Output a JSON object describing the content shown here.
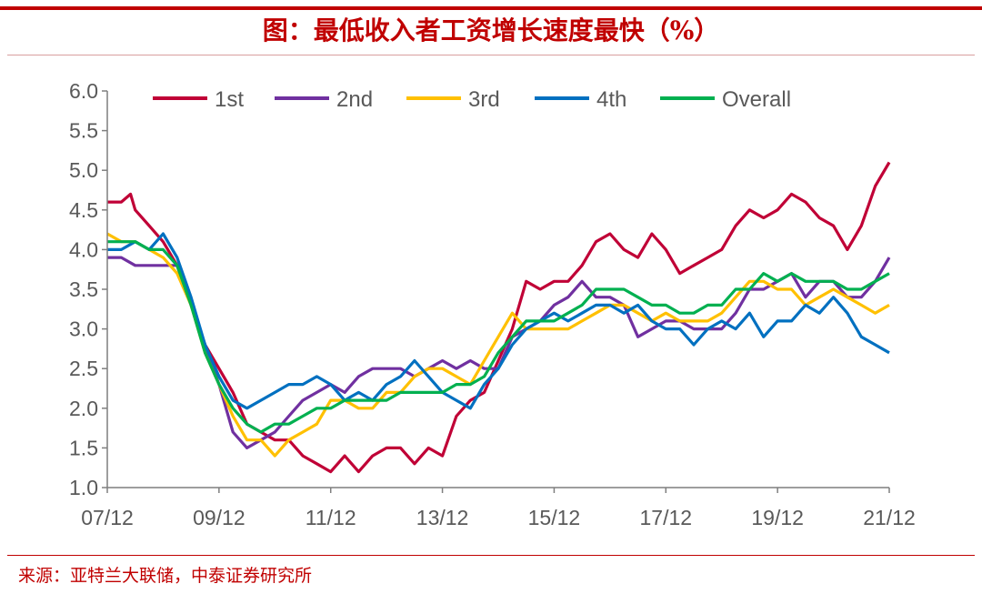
{
  "header": {
    "title": "图：最低收入者工资增长速度最快（%）"
  },
  "footer": {
    "source": "来源：亚特兰大联储，中泰证券研究所"
  },
  "colors": {
    "accent": "#c00000",
    "axis": "#7f7f7f",
    "text": "#595959"
  },
  "chart_data": {
    "type": "line",
    "title": "图：最低收入者工资增长速度最快（%）",
    "xlabel": "",
    "ylabel": "",
    "x_ticks": [
      "07/12",
      "09/12",
      "11/12",
      "13/12",
      "15/12",
      "17/12",
      "19/12",
      "21/12"
    ],
    "y_ticks": [
      "6.0",
      "5.5",
      "5.0",
      "4.5",
      "4.0",
      "3.5",
      "3.0",
      "2.5",
      "2.0",
      "1.5",
      "1.0"
    ],
    "ylim": [
      1.0,
      6.0
    ],
    "grid": false,
    "legend_position": "top",
    "series": [
      {
        "name": "1st",
        "color": "#c00036",
        "points": [
          [
            "2007-12",
            4.6
          ],
          [
            "2008-03",
            4.6
          ],
          [
            "2008-05",
            4.7
          ],
          [
            "2008-06",
            4.5
          ],
          [
            "2008-09",
            4.3
          ],
          [
            "2008-12",
            4.1
          ],
          [
            "2009-03",
            3.8
          ],
          [
            "2009-06",
            3.3
          ],
          [
            "2009-09",
            2.8
          ],
          [
            "2009-12",
            2.5
          ],
          [
            "2010-03",
            2.2
          ],
          [
            "2010-06",
            1.8
          ],
          [
            "2010-09",
            1.7
          ],
          [
            "2010-12",
            1.6
          ],
          [
            "2011-03",
            1.6
          ],
          [
            "2011-06",
            1.4
          ],
          [
            "2011-09",
            1.3
          ],
          [
            "2011-12",
            1.2
          ],
          [
            "2012-03",
            1.4
          ],
          [
            "2012-06",
            1.2
          ],
          [
            "2012-09",
            1.4
          ],
          [
            "2012-12",
            1.5
          ],
          [
            "2013-03",
            1.5
          ],
          [
            "2013-06",
            1.3
          ],
          [
            "2013-09",
            1.5
          ],
          [
            "2013-12",
            1.4
          ],
          [
            "2014-03",
            1.9
          ],
          [
            "2014-06",
            2.1
          ],
          [
            "2014-09",
            2.2
          ],
          [
            "2014-12",
            2.6
          ],
          [
            "2015-03",
            3.0
          ],
          [
            "2015-06",
            3.6
          ],
          [
            "2015-09",
            3.5
          ],
          [
            "2015-12",
            3.6
          ],
          [
            "2016-03",
            3.6
          ],
          [
            "2016-06",
            3.8
          ],
          [
            "2016-09",
            4.1
          ],
          [
            "2016-12",
            4.2
          ],
          [
            "2017-03",
            4.0
          ],
          [
            "2017-06",
            3.9
          ],
          [
            "2017-09",
            4.2
          ],
          [
            "2017-12",
            4.0
          ],
          [
            "2018-03",
            3.7
          ],
          [
            "2018-06",
            3.8
          ],
          [
            "2018-09",
            3.9
          ],
          [
            "2018-12",
            4.0
          ],
          [
            "2019-03",
            4.3
          ],
          [
            "2019-06",
            4.5
          ],
          [
            "2019-09",
            4.4
          ],
          [
            "2019-12",
            4.5
          ],
          [
            "2020-03",
            4.7
          ],
          [
            "2020-06",
            4.6
          ],
          [
            "2020-09",
            4.4
          ],
          [
            "2020-12",
            4.3
          ],
          [
            "2021-03",
            4.0
          ],
          [
            "2021-06",
            4.3
          ],
          [
            "2021-09",
            4.8
          ],
          [
            "2021-12",
            5.1
          ]
        ]
      },
      {
        "name": "2nd",
        "color": "#7030a0",
        "points": [
          [
            "2007-12",
            3.9
          ],
          [
            "2008-03",
            3.9
          ],
          [
            "2008-06",
            3.8
          ],
          [
            "2008-09",
            3.8
          ],
          [
            "2008-12",
            3.8
          ],
          [
            "2009-03",
            3.8
          ],
          [
            "2009-06",
            3.3
          ],
          [
            "2009-09",
            2.8
          ],
          [
            "2009-12",
            2.3
          ],
          [
            "2010-03",
            1.7
          ],
          [
            "2010-06",
            1.5
          ],
          [
            "2010-09",
            1.6
          ],
          [
            "2010-12",
            1.7
          ],
          [
            "2011-03",
            1.9
          ],
          [
            "2011-06",
            2.1
          ],
          [
            "2011-09",
            2.2
          ],
          [
            "2011-12",
            2.3
          ],
          [
            "2012-03",
            2.2
          ],
          [
            "2012-06",
            2.4
          ],
          [
            "2012-09",
            2.5
          ],
          [
            "2012-12",
            2.5
          ],
          [
            "2013-03",
            2.5
          ],
          [
            "2013-06",
            2.4
          ],
          [
            "2013-09",
            2.5
          ],
          [
            "2013-12",
            2.6
          ],
          [
            "2014-03",
            2.5
          ],
          [
            "2014-06",
            2.6
          ],
          [
            "2014-09",
            2.5
          ],
          [
            "2014-12",
            2.5
          ],
          [
            "2015-03",
            2.9
          ],
          [
            "2015-06",
            3.0
          ],
          [
            "2015-09",
            3.1
          ],
          [
            "2015-12",
            3.3
          ],
          [
            "2016-03",
            3.4
          ],
          [
            "2016-06",
            3.6
          ],
          [
            "2016-09",
            3.4
          ],
          [
            "2016-12",
            3.4
          ],
          [
            "2017-03",
            3.3
          ],
          [
            "2017-06",
            2.9
          ],
          [
            "2017-09",
            3.0
          ],
          [
            "2017-12",
            3.1
          ],
          [
            "2018-03",
            3.1
          ],
          [
            "2018-06",
            3.0
          ],
          [
            "2018-09",
            3.0
          ],
          [
            "2018-12",
            3.0
          ],
          [
            "2019-03",
            3.2
          ],
          [
            "2019-06",
            3.5
          ],
          [
            "2019-09",
            3.5
          ],
          [
            "2019-12",
            3.6
          ],
          [
            "2020-03",
            3.7
          ],
          [
            "2020-06",
            3.4
          ],
          [
            "2020-09",
            3.6
          ],
          [
            "2020-12",
            3.6
          ],
          [
            "2021-03",
            3.4
          ],
          [
            "2021-06",
            3.4
          ],
          [
            "2021-09",
            3.6
          ],
          [
            "2021-12",
            3.9
          ]
        ]
      },
      {
        "name": "3rd",
        "color": "#ffc000",
        "points": [
          [
            "2007-12",
            4.2
          ],
          [
            "2008-03",
            4.1
          ],
          [
            "2008-06",
            4.1
          ],
          [
            "2008-09",
            4.0
          ],
          [
            "2008-12",
            3.9
          ],
          [
            "2009-03",
            3.7
          ],
          [
            "2009-06",
            3.3
          ],
          [
            "2009-09",
            2.7
          ],
          [
            "2009-12",
            2.3
          ],
          [
            "2010-03",
            1.9
          ],
          [
            "2010-06",
            1.6
          ],
          [
            "2010-09",
            1.6
          ],
          [
            "2010-12",
            1.4
          ],
          [
            "2011-03",
            1.6
          ],
          [
            "2011-06",
            1.7
          ],
          [
            "2011-09",
            1.8
          ],
          [
            "2011-12",
            2.1
          ],
          [
            "2012-03",
            2.1
          ],
          [
            "2012-06",
            2.0
          ],
          [
            "2012-09",
            2.0
          ],
          [
            "2012-12",
            2.2
          ],
          [
            "2013-03",
            2.2
          ],
          [
            "2013-06",
            2.4
          ],
          [
            "2013-09",
            2.5
          ],
          [
            "2013-12",
            2.5
          ],
          [
            "2014-03",
            2.4
          ],
          [
            "2014-06",
            2.3
          ],
          [
            "2014-09",
            2.6
          ],
          [
            "2014-12",
            2.9
          ],
          [
            "2015-03",
            3.2
          ],
          [
            "2015-06",
            3.0
          ],
          [
            "2015-09",
            3.0
          ],
          [
            "2015-12",
            3.0
          ],
          [
            "2016-03",
            3.0
          ],
          [
            "2016-06",
            3.1
          ],
          [
            "2016-09",
            3.2
          ],
          [
            "2016-12",
            3.3
          ],
          [
            "2017-03",
            3.3
          ],
          [
            "2017-06",
            3.2
          ],
          [
            "2017-09",
            3.1
          ],
          [
            "2017-12",
            3.2
          ],
          [
            "2018-03",
            3.1
          ],
          [
            "2018-06",
            3.1
          ],
          [
            "2018-09",
            3.1
          ],
          [
            "2018-12",
            3.2
          ],
          [
            "2019-03",
            3.4
          ],
          [
            "2019-06",
            3.6
          ],
          [
            "2019-09",
            3.6
          ],
          [
            "2019-12",
            3.5
          ],
          [
            "2020-03",
            3.5
          ],
          [
            "2020-06",
            3.3
          ],
          [
            "2020-09",
            3.4
          ],
          [
            "2020-12",
            3.5
          ],
          [
            "2021-03",
            3.4
          ],
          [
            "2021-06",
            3.3
          ],
          [
            "2021-09",
            3.2
          ],
          [
            "2021-12",
            3.3
          ]
        ]
      },
      {
        "name": "4th",
        "color": "#0070c0",
        "points": [
          [
            "2007-12",
            4.0
          ],
          [
            "2008-03",
            4.0
          ],
          [
            "2008-06",
            4.1
          ],
          [
            "2008-09",
            4.0
          ],
          [
            "2008-12",
            4.2
          ],
          [
            "2009-03",
            3.9
          ],
          [
            "2009-06",
            3.4
          ],
          [
            "2009-09",
            2.8
          ],
          [
            "2009-12",
            2.4
          ],
          [
            "2010-03",
            2.1
          ],
          [
            "2010-06",
            2.0
          ],
          [
            "2010-09",
            2.1
          ],
          [
            "2010-12",
            2.2
          ],
          [
            "2011-03",
            2.3
          ],
          [
            "2011-06",
            2.3
          ],
          [
            "2011-09",
            2.4
          ],
          [
            "2011-12",
            2.3
          ],
          [
            "2012-03",
            2.1
          ],
          [
            "2012-06",
            2.2
          ],
          [
            "2012-09",
            2.1
          ],
          [
            "2012-12",
            2.3
          ],
          [
            "2013-03",
            2.4
          ],
          [
            "2013-06",
            2.6
          ],
          [
            "2013-09",
            2.4
          ],
          [
            "2013-12",
            2.2
          ],
          [
            "2014-03",
            2.1
          ],
          [
            "2014-06",
            2.0
          ],
          [
            "2014-09",
            2.3
          ],
          [
            "2014-12",
            2.5
          ],
          [
            "2015-03",
            2.8
          ],
          [
            "2015-06",
            3.0
          ],
          [
            "2015-09",
            3.1
          ],
          [
            "2015-12",
            3.2
          ],
          [
            "2016-03",
            3.1
          ],
          [
            "2016-06",
            3.2
          ],
          [
            "2016-09",
            3.3
          ],
          [
            "2016-12",
            3.3
          ],
          [
            "2017-03",
            3.2
          ],
          [
            "2017-06",
            3.3
          ],
          [
            "2017-09",
            3.1
          ],
          [
            "2017-12",
            3.0
          ],
          [
            "2018-03",
            3.0
          ],
          [
            "2018-06",
            2.8
          ],
          [
            "2018-09",
            3.0
          ],
          [
            "2018-12",
            3.1
          ],
          [
            "2019-03",
            3.0
          ],
          [
            "2019-06",
            3.2
          ],
          [
            "2019-09",
            2.9
          ],
          [
            "2019-12",
            3.1
          ],
          [
            "2020-03",
            3.1
          ],
          [
            "2020-06",
            3.3
          ],
          [
            "2020-09",
            3.2
          ],
          [
            "2020-12",
            3.4
          ],
          [
            "2021-03",
            3.2
          ],
          [
            "2021-06",
            2.9
          ],
          [
            "2021-09",
            2.8
          ],
          [
            "2021-12",
            2.7
          ]
        ]
      },
      {
        "name": "Overall",
        "color": "#00b050",
        "points": [
          [
            "2007-12",
            4.1
          ],
          [
            "2008-03",
            4.1
          ],
          [
            "2008-06",
            4.1
          ],
          [
            "2008-09",
            4.0
          ],
          [
            "2008-12",
            4.0
          ],
          [
            "2009-03",
            3.8
          ],
          [
            "2009-06",
            3.3
          ],
          [
            "2009-09",
            2.7
          ],
          [
            "2009-12",
            2.3
          ],
          [
            "2010-03",
            2.0
          ],
          [
            "2010-06",
            1.8
          ],
          [
            "2010-09",
            1.7
          ],
          [
            "2010-12",
            1.8
          ],
          [
            "2011-03",
            1.8
          ],
          [
            "2011-06",
            1.9
          ],
          [
            "2011-09",
            2.0
          ],
          [
            "2011-12",
            2.0
          ],
          [
            "2012-03",
            2.1
          ],
          [
            "2012-06",
            2.1
          ],
          [
            "2012-09",
            2.1
          ],
          [
            "2012-12",
            2.1
          ],
          [
            "2013-03",
            2.2
          ],
          [
            "2013-06",
            2.2
          ],
          [
            "2013-09",
            2.2
          ],
          [
            "2013-12",
            2.2
          ],
          [
            "2014-03",
            2.3
          ],
          [
            "2014-06",
            2.3
          ],
          [
            "2014-09",
            2.4
          ],
          [
            "2014-12",
            2.7
          ],
          [
            "2015-03",
            2.9
          ],
          [
            "2015-06",
            3.1
          ],
          [
            "2015-09",
            3.1
          ],
          [
            "2015-12",
            3.1
          ],
          [
            "2016-03",
            3.2
          ],
          [
            "2016-06",
            3.3
          ],
          [
            "2016-09",
            3.5
          ],
          [
            "2016-12",
            3.5
          ],
          [
            "2017-03",
            3.5
          ],
          [
            "2017-06",
            3.4
          ],
          [
            "2017-09",
            3.3
          ],
          [
            "2017-12",
            3.3
          ],
          [
            "2018-03",
            3.2
          ],
          [
            "2018-06",
            3.2
          ],
          [
            "2018-09",
            3.3
          ],
          [
            "2018-12",
            3.3
          ],
          [
            "2019-03",
            3.5
          ],
          [
            "2019-06",
            3.5
          ],
          [
            "2019-09",
            3.7
          ],
          [
            "2019-12",
            3.6
          ],
          [
            "2020-03",
            3.7
          ],
          [
            "2020-06",
            3.6
          ],
          [
            "2020-09",
            3.6
          ],
          [
            "2020-12",
            3.6
          ],
          [
            "2021-03",
            3.5
          ],
          [
            "2021-06",
            3.5
          ],
          [
            "2021-09",
            3.6
          ],
          [
            "2021-12",
            3.7
          ]
        ]
      }
    ]
  }
}
